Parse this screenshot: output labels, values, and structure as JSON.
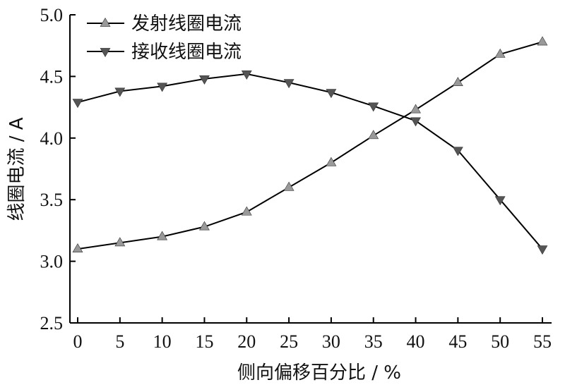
{
  "chart_data": {
    "type": "line",
    "xlabel": "侧向偏移百分比 / %",
    "ylabel": "线圈电流 / A",
    "x": [
      0,
      5,
      10,
      15,
      20,
      25,
      30,
      35,
      40,
      45,
      50,
      55
    ],
    "x_ticks": [
      "0",
      "5",
      "10",
      "15",
      "20",
      "25",
      "30",
      "35",
      "40",
      "45",
      "50",
      "55"
    ],
    "y_ticks": [
      "2.5",
      "3.0",
      "3.5",
      "4.0",
      "4.5",
      "5.0"
    ],
    "xlim": [
      0,
      55
    ],
    "ylim": [
      2.5,
      5.0
    ],
    "grid": false,
    "legend_position": "top-left",
    "series": [
      {
        "name": "发射线圈电流",
        "marker": "triangle-up",
        "color": "#000000",
        "marker_color": "#999999",
        "values": [
          3.1,
          3.15,
          3.2,
          3.28,
          3.4,
          3.6,
          3.8,
          4.02,
          4.23,
          4.45,
          4.68,
          4.78
        ]
      },
      {
        "name": "接收线圈电流",
        "marker": "triangle-down",
        "color": "#000000",
        "marker_color": "#555555",
        "values": [
          4.29,
          4.38,
          4.42,
          4.48,
          4.52,
          4.45,
          4.37,
          4.26,
          4.14,
          3.9,
          3.5,
          3.1
        ]
      }
    ]
  }
}
